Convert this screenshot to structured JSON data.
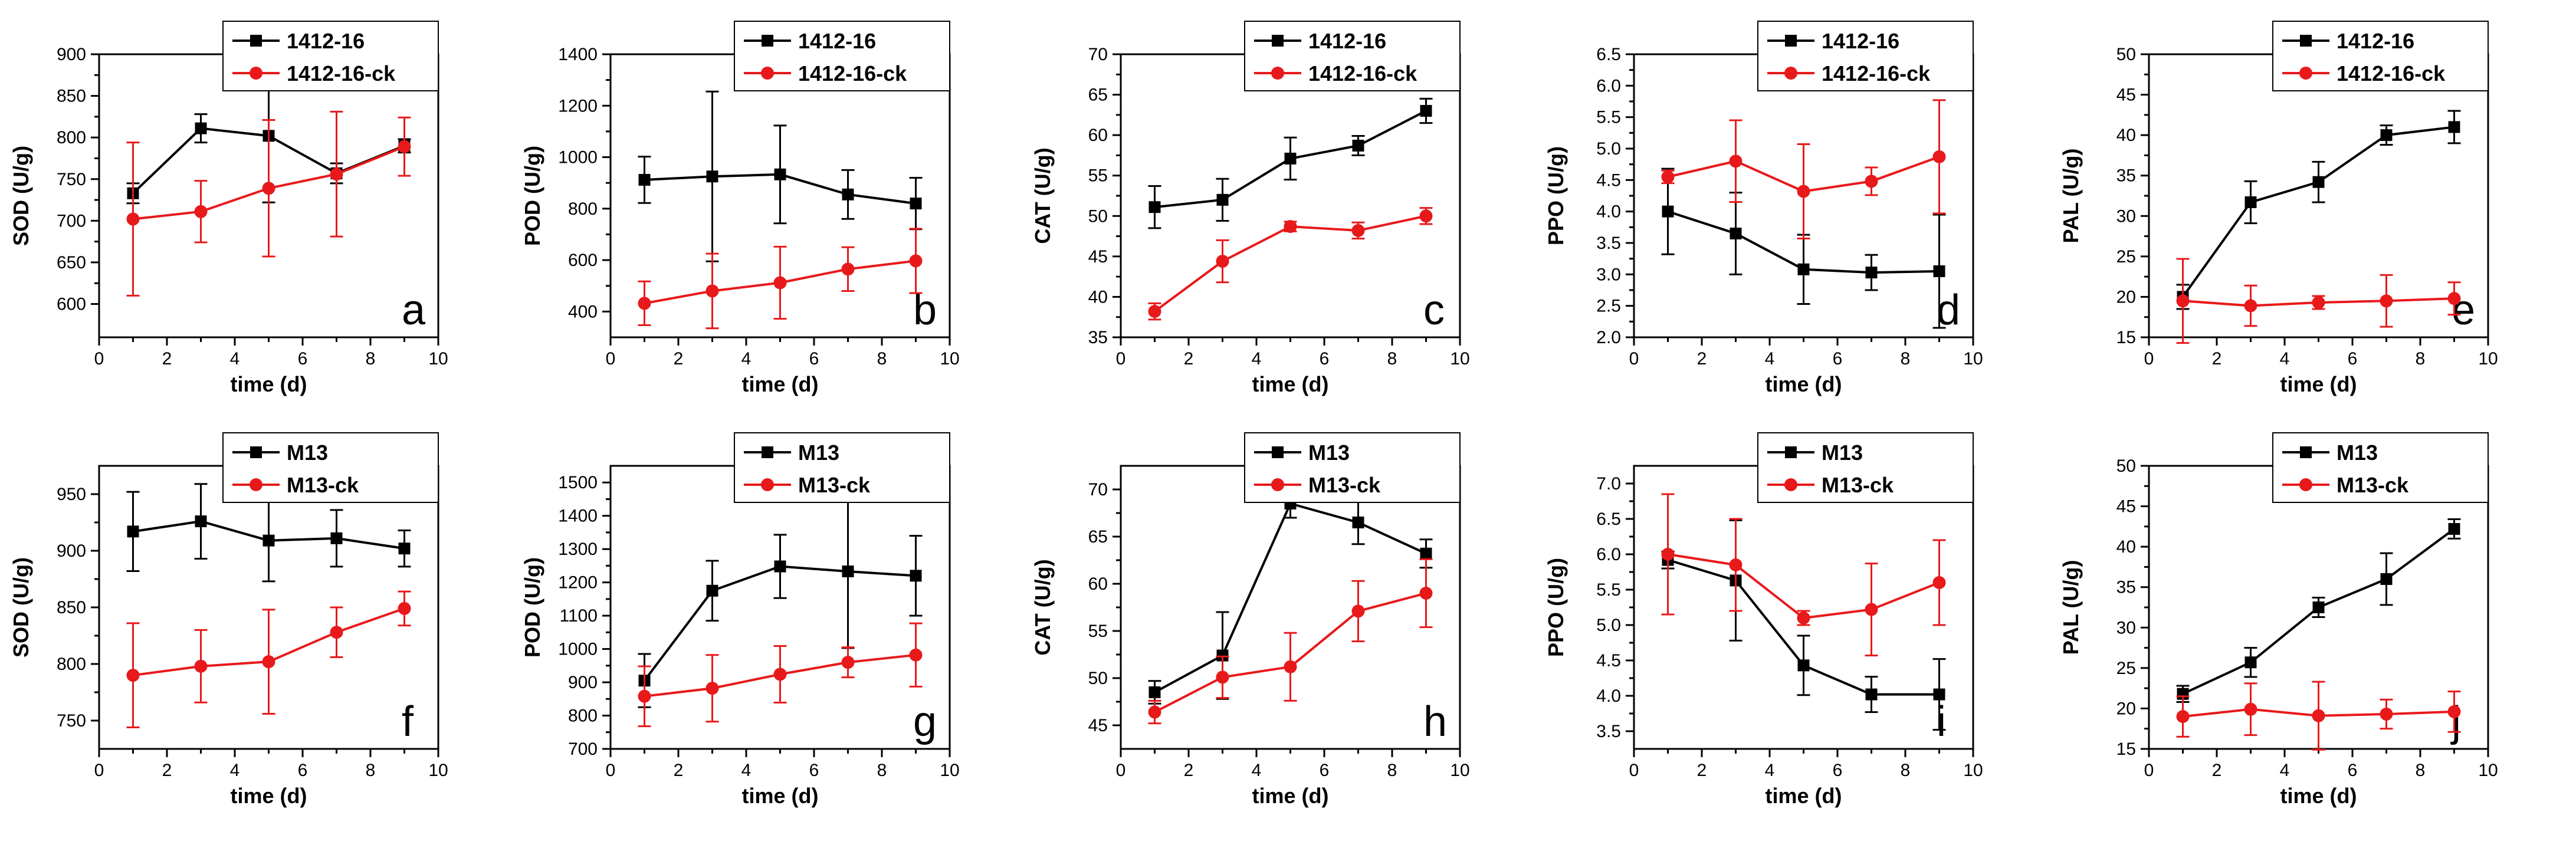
{
  "colors": {
    "treatment": "#000000",
    "control": "#e8191b"
  },
  "chart_data": [
    {
      "id": "a",
      "type": "line",
      "letter": "a",
      "xlabel": "time (d)",
      "ylabel": "SOD (U/g)",
      "xlim": [
        0,
        10
      ],
      "ylim": [
        560,
        900
      ],
      "yticks": [
        600,
        650,
        700,
        750,
        800,
        850,
        900
      ],
      "xticks": [
        0,
        2,
        4,
        6,
        8,
        10
      ],
      "x": [
        1,
        3,
        5,
        7,
        9
      ],
      "series": [
        {
          "name": "1412-16",
          "values": [
            733,
            811,
            802,
            757,
            790
          ],
          "errors": [
            12,
            17,
            80,
            12,
            8
          ]
        },
        {
          "name": "1412-16-ck",
          "values": [
            702,
            711,
            739,
            756,
            789
          ],
          "errors": [
            92,
            37,
            82,
            75,
            35
          ]
        }
      ]
    },
    {
      "id": "b",
      "type": "line",
      "letter": "b",
      "xlabel": "time (d)",
      "ylabel": "POD (U/g)",
      "xlim": [
        0,
        10
      ],
      "ylim": [
        300,
        1400
      ],
      "yticks": [
        400,
        600,
        800,
        1000,
        1200,
        1400
      ],
      "xticks": [
        0,
        2,
        4,
        6,
        8,
        10
      ],
      "x": [
        1,
        3,
        5,
        7,
        9
      ],
      "series": [
        {
          "name": "1412-16",
          "values": [
            912,
            925,
            933,
            855,
            820
          ],
          "errors": [
            90,
            330,
            190,
            95,
            100
          ]
        },
        {
          "name": "1412-16-ck",
          "values": [
            432,
            480,
            512,
            565,
            597
          ],
          "errors": [
            85,
            145,
            140,
            85,
            125
          ]
        }
      ]
    },
    {
      "id": "c",
      "type": "line",
      "letter": "c",
      "xlabel": "time (d)",
      "ylabel": "CAT (U/g)",
      "xlim": [
        0,
        10
      ],
      "ylim": [
        35,
        70
      ],
      "yticks": [
        35,
        40,
        45,
        50,
        55,
        60,
        65,
        70
      ],
      "xticks": [
        0,
        2,
        4,
        6,
        8,
        10
      ],
      "x": [
        1,
        3,
        5,
        7,
        9
      ],
      "series": [
        {
          "name": "1412-16",
          "values": [
            51.1,
            52.0,
            57.1,
            58.7,
            63.0
          ],
          "errors": [
            2.6,
            2.6,
            2.6,
            1.2,
            1.5
          ]
        },
        {
          "name": "1412-16-ck",
          "values": [
            38.2,
            44.4,
            48.7,
            48.2,
            50.0
          ],
          "errors": [
            1.0,
            2.6,
            0.6,
            1.0,
            1.0
          ]
        }
      ]
    },
    {
      "id": "d",
      "type": "line",
      "letter": "d",
      "xlabel": "time (d)",
      "ylabel": "PPO (U/g)",
      "xlim": [
        0,
        10
      ],
      "ylim": [
        2.0,
        6.5
      ],
      "yticks": [
        2.0,
        2.5,
        3.0,
        3.5,
        4.0,
        4.5,
        5.0,
        5.5,
        6.0,
        6.5
      ],
      "xticks": [
        0,
        2,
        4,
        6,
        8,
        10
      ],
      "x": [
        1,
        3,
        5,
        7,
        9
      ],
      "series": [
        {
          "name": "1412-16",
          "values": [
            4.0,
            3.65,
            3.08,
            3.03,
            3.05
          ],
          "errors": [
            0.68,
            0.65,
            0.55,
            0.28,
            0.9
          ]
        },
        {
          "name": "1412-16-ck",
          "values": [
            4.55,
            4.8,
            4.32,
            4.48,
            4.87
          ],
          "errors": [
            0.1,
            0.65,
            0.75,
            0.22,
            0.9
          ]
        }
      ]
    },
    {
      "id": "e",
      "type": "line",
      "letter": "e",
      "xlabel": "time (d)",
      "ylabel": "PAL (U/g)",
      "xlim": [
        0,
        10
      ],
      "ylim": [
        15,
        50
      ],
      "yticks": [
        15,
        20,
        25,
        30,
        35,
        40,
        45,
        50
      ],
      "xticks": [
        0,
        2,
        4,
        6,
        8,
        10
      ],
      "x": [
        1,
        3,
        5,
        7,
        9
      ],
      "series": [
        {
          "name": "1412-16",
          "values": [
            20.0,
            31.7,
            34.2,
            40.0,
            41.0
          ],
          "errors": [
            1.5,
            2.6,
            2.5,
            1.2,
            2.0
          ]
        },
        {
          "name": "1412-16-ck",
          "values": [
            19.5,
            18.9,
            19.3,
            19.5,
            19.8
          ],
          "errors": [
            5.2,
            2.5,
            0.8,
            3.2,
            2.0
          ]
        }
      ]
    },
    {
      "id": "f",
      "type": "line",
      "letter": "f",
      "xlabel": "time (d)",
      "ylabel": "SOD (U/g)",
      "xlim": [
        0,
        10
      ],
      "ylim": [
        725,
        975
      ],
      "yticks": [
        750,
        800,
        850,
        900,
        950
      ],
      "xticks": [
        0,
        2,
        4,
        6,
        8,
        10
      ],
      "x": [
        1,
        3,
        5,
        7,
        9
      ],
      "series": [
        {
          "name": "M13",
          "values": [
            917,
            926,
            909,
            911,
            902
          ],
          "errors": [
            35,
            33,
            36,
            25,
            16
          ]
        },
        {
          "name": "M13-ck",
          "values": [
            790,
            798,
            802,
            828,
            849
          ],
          "errors": [
            46,
            32,
            46,
            22,
            15
          ]
        }
      ]
    },
    {
      "id": "g",
      "type": "line",
      "letter": "g",
      "xlabel": "time (d)",
      "ylabel": "POD (U/g)",
      "xlim": [
        0,
        10
      ],
      "ylim": [
        700,
        1550
      ],
      "yticks": [
        700,
        800,
        900,
        1000,
        1100,
        1200,
        1300,
        1400,
        1500
      ],
      "xticks": [
        0,
        2,
        4,
        6,
        8,
        10
      ],
      "x": [
        1,
        3,
        5,
        7,
        9
      ],
      "series": [
        {
          "name": "M13",
          "values": [
            905,
            1175,
            1248,
            1233,
            1220
          ],
          "errors": [
            80,
            90,
            95,
            230,
            120
          ]
        },
        {
          "name": "M13-ck",
          "values": [
            858,
            882,
            924,
            960,
            982
          ],
          "errors": [
            90,
            100,
            85,
            45,
            95
          ]
        }
      ]
    },
    {
      "id": "h",
      "type": "line",
      "letter": "h",
      "xlabel": "time (d)",
      "ylabel": "CAT (U/g)",
      "xlim": [
        0,
        10
      ],
      "ylim": [
        42.5,
        72.5
      ],
      "yticks": [
        45,
        50,
        55,
        60,
        65,
        70
      ],
      "xticks": [
        0,
        2,
        4,
        6,
        8,
        10
      ],
      "x": [
        1,
        3,
        5,
        7,
        9
      ],
      "series": [
        {
          "name": "M13",
          "values": [
            48.5,
            52.4,
            68.5,
            66.5,
            63.2
          ],
          "errors": [
            1.2,
            4.6,
            1.5,
            2.3,
            1.5
          ]
        },
        {
          "name": "M13-ck",
          "values": [
            46.4,
            50.1,
            51.2,
            57.1,
            59.0
          ],
          "errors": [
            1.2,
            2.2,
            3.6,
            3.2,
            3.6
          ]
        }
      ]
    },
    {
      "id": "i",
      "type": "line",
      "letter": "i",
      "xlabel": "time (d)",
      "ylabel": "PPO (U/g)",
      "xlim": [
        0,
        10
      ],
      "ylim": [
        3.25,
        7.25
      ],
      "yticks": [
        3.5,
        4.0,
        4.5,
        5.0,
        5.5,
        6.0,
        6.5,
        7.0
      ],
      "xticks": [
        0,
        2,
        4,
        6,
        8,
        10
      ],
      "x": [
        1,
        3,
        5,
        7,
        9
      ],
      "series": [
        {
          "name": "M13",
          "values": [
            5.92,
            5.63,
            4.43,
            4.02,
            4.02
          ],
          "errors": [
            0.12,
            0.85,
            0.42,
            0.25,
            0.5
          ]
        },
        {
          "name": "M13-ck",
          "values": [
            6.0,
            5.85,
            5.1,
            5.22,
            5.6
          ],
          "errors": [
            0.85,
            0.65,
            0.1,
            0.65,
            0.6
          ]
        }
      ]
    },
    {
      "id": "j",
      "type": "line",
      "letter": "j",
      "xlabel": "time (d)",
      "ylabel": "PAL (U/g)",
      "xlim": [
        0,
        10
      ],
      "ylim": [
        15,
        50
      ],
      "yticks": [
        15,
        20,
        25,
        30,
        35,
        40,
        45,
        50
      ],
      "xticks": [
        0,
        2,
        4,
        6,
        8,
        10
      ],
      "x": [
        1,
        3,
        5,
        7,
        9
      ],
      "series": [
        {
          "name": "M13",
          "values": [
            21.8,
            25.7,
            32.5,
            36.0,
            42.2
          ],
          "errors": [
            1.0,
            1.8,
            1.2,
            3.2,
            1.2
          ]
        },
        {
          "name": "M13-ck",
          "values": [
            19.0,
            19.9,
            19.1,
            19.3,
            19.6
          ],
          "errors": [
            2.5,
            3.2,
            4.2,
            1.8,
            2.5
          ]
        }
      ]
    }
  ]
}
